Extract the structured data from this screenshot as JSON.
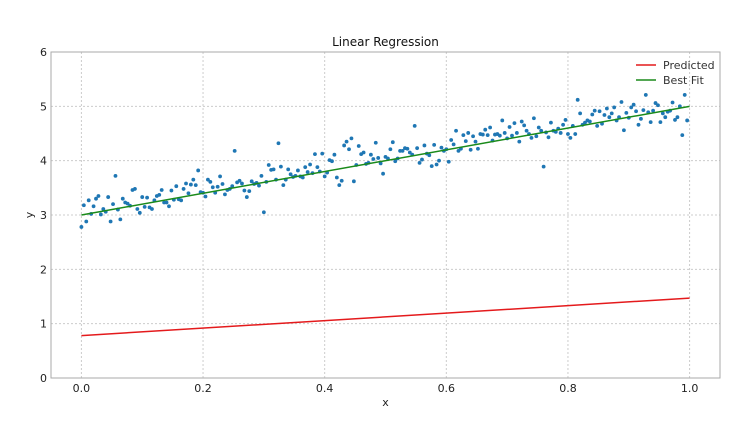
{
  "chart_data": {
    "type": "scatter",
    "title": "Linear Regression",
    "xlabel": "x",
    "ylabel": "y",
    "xlim": [
      -0.05,
      1.05
    ],
    "ylim": [
      0,
      6
    ],
    "x_ticks": [
      "0.0",
      "0.2",
      "0.4",
      "0.6",
      "0.8",
      "1.0"
    ],
    "y_ticks": [
      "0",
      "1",
      "2",
      "3",
      "4",
      "5",
      "6"
    ],
    "grid": true,
    "legend_position": "top-right",
    "scatter": {
      "color": "#1f77b4",
      "points": [
        [
          0.0,
          2.78
        ],
        [
          0.004,
          3.18
        ],
        [
          0.008,
          2.88
        ],
        [
          0.012,
          3.27
        ],
        [
          0.016,
          3.02
        ],
        [
          0.02,
          3.16
        ],
        [
          0.024,
          3.3
        ],
        [
          0.028,
          3.35
        ],
        [
          0.032,
          3.01
        ],
        [
          0.036,
          3.11
        ],
        [
          0.04,
          3.06
        ],
        [
          0.044,
          3.33
        ],
        [
          0.048,
          2.88
        ],
        [
          0.052,
          3.2
        ],
        [
          0.056,
          3.72
        ],
        [
          0.06,
          3.1
        ],
        [
          0.064,
          2.92
        ],
        [
          0.068,
          3.3
        ],
        [
          0.072,
          3.23
        ],
        [
          0.076,
          3.21
        ],
        [
          0.08,
          3.17
        ],
        [
          0.084,
          3.46
        ],
        [
          0.088,
          3.48
        ],
        [
          0.092,
          3.11
        ],
        [
          0.096,
          3.04
        ],
        [
          0.1,
          3.33
        ],
        [
          0.104,
          3.15
        ],
        [
          0.108,
          3.32
        ],
        [
          0.112,
          3.14
        ],
        [
          0.116,
          3.11
        ],
        [
          0.12,
          3.27
        ],
        [
          0.124,
          3.35
        ],
        [
          0.128,
          3.37
        ],
        [
          0.132,
          3.46
        ],
        [
          0.136,
          3.23
        ],
        [
          0.14,
          3.23
        ],
        [
          0.144,
          3.16
        ],
        [
          0.148,
          3.45
        ],
        [
          0.152,
          3.28
        ],
        [
          0.156,
          3.53
        ],
        [
          0.16,
          3.29
        ],
        [
          0.164,
          3.27
        ],
        [
          0.168,
          3.48
        ],
        [
          0.172,
          3.58
        ],
        [
          0.176,
          3.4
        ],
        [
          0.18,
          3.56
        ],
        [
          0.184,
          3.65
        ],
        [
          0.188,
          3.55
        ],
        [
          0.192,
          3.82
        ],
        [
          0.196,
          3.42
        ],
        [
          0.2,
          3.41
        ],
        [
          0.204,
          3.34
        ],
        [
          0.208,
          3.65
        ],
        [
          0.212,
          3.61
        ],
        [
          0.216,
          3.51
        ],
        [
          0.22,
          3.41
        ],
        [
          0.224,
          3.52
        ],
        [
          0.228,
          3.71
        ],
        [
          0.232,
          3.57
        ],
        [
          0.236,
          3.38
        ],
        [
          0.24,
          3.46
        ],
        [
          0.244,
          3.48
        ],
        [
          0.248,
          3.53
        ],
        [
          0.252,
          4.18
        ],
        [
          0.256,
          3.6
        ],
        [
          0.26,
          3.63
        ],
        [
          0.264,
          3.58
        ],
        [
          0.268,
          3.45
        ],
        [
          0.272,
          3.33
        ],
        [
          0.276,
          3.44
        ],
        [
          0.28,
          3.62
        ],
        [
          0.284,
          3.57
        ],
        [
          0.288,
          3.59
        ],
        [
          0.292,
          3.54
        ],
        [
          0.296,
          3.72
        ],
        [
          0.3,
          3.05
        ],
        [
          0.304,
          3.61
        ],
        [
          0.308,
          3.92
        ],
        [
          0.312,
          3.83
        ],
        [
          0.316,
          3.84
        ],
        [
          0.32,
          3.65
        ],
        [
          0.324,
          4.32
        ],
        [
          0.328,
          3.89
        ],
        [
          0.332,
          3.55
        ],
        [
          0.336,
          3.65
        ],
        [
          0.34,
          3.84
        ],
        [
          0.344,
          3.75
        ],
        [
          0.348,
          3.7
        ],
        [
          0.352,
          3.72
        ],
        [
          0.356,
          3.82
        ],
        [
          0.36,
          3.71
        ],
        [
          0.364,
          3.69
        ],
        [
          0.368,
          3.88
        ],
        [
          0.372,
          3.79
        ],
        [
          0.376,
          3.93
        ],
        [
          0.38,
          3.77
        ],
        [
          0.384,
          4.12
        ],
        [
          0.388,
          3.88
        ],
        [
          0.392,
          3.8
        ],
        [
          0.396,
          4.13
        ],
        [
          0.4,
          3.71
        ],
        [
          0.404,
          3.78
        ],
        [
          0.408,
          4.01
        ],
        [
          0.412,
          3.99
        ],
        [
          0.416,
          4.11
        ],
        [
          0.42,
          3.69
        ],
        [
          0.424,
          3.55
        ],
        [
          0.428,
          3.63
        ],
        [
          0.432,
          4.28
        ],
        [
          0.436,
          4.35
        ],
        [
          0.44,
          4.21
        ],
        [
          0.444,
          4.41
        ],
        [
          0.448,
          3.62
        ],
        [
          0.452,
          3.92
        ],
        [
          0.456,
          4.27
        ],
        [
          0.46,
          4.12
        ],
        [
          0.464,
          4.15
        ],
        [
          0.468,
          3.94
        ],
        [
          0.472,
          3.96
        ],
        [
          0.476,
          4.11
        ],
        [
          0.48,
          4.03
        ],
        [
          0.484,
          4.33
        ],
        [
          0.488,
          4.05
        ],
        [
          0.492,
          3.95
        ],
        [
          0.496,
          3.76
        ],
        [
          0.5,
          4.07
        ],
        [
          0.504,
          4.04
        ],
        [
          0.508,
          4.21
        ],
        [
          0.512,
          4.34
        ],
        [
          0.516,
          3.99
        ],
        [
          0.52,
          4.04
        ],
        [
          0.524,
          4.18
        ],
        [
          0.528,
          4.18
        ],
        [
          0.532,
          4.23
        ],
        [
          0.536,
          4.22
        ],
        [
          0.54,
          4.15
        ],
        [
          0.544,
          4.11
        ],
        [
          0.548,
          4.64
        ],
        [
          0.552,
          4.23
        ],
        [
          0.556,
          3.96
        ],
        [
          0.56,
          4.02
        ],
        [
          0.564,
          4.28
        ],
        [
          0.568,
          4.13
        ],
        [
          0.572,
          4.1
        ],
        [
          0.576,
          3.9
        ],
        [
          0.58,
          4.29
        ],
        [
          0.584,
          3.93
        ],
        [
          0.588,
          4.0
        ],
        [
          0.592,
          4.24
        ],
        [
          0.596,
          4.18
        ],
        [
          0.6,
          4.21
        ],
        [
          0.604,
          3.98
        ],
        [
          0.608,
          4.38
        ],
        [
          0.612,
          4.3
        ],
        [
          0.616,
          4.55
        ],
        [
          0.62,
          4.18
        ],
        [
          0.624,
          4.22
        ],
        [
          0.628,
          4.47
        ],
        [
          0.632,
          4.36
        ],
        [
          0.636,
          4.51
        ],
        [
          0.64,
          4.2
        ],
        [
          0.644,
          4.45
        ],
        [
          0.648,
          4.35
        ],
        [
          0.652,
          4.22
        ],
        [
          0.656,
          4.49
        ],
        [
          0.66,
          4.48
        ],
        [
          0.664,
          4.57
        ],
        [
          0.668,
          4.47
        ],
        [
          0.672,
          4.61
        ],
        [
          0.676,
          4.37
        ],
        [
          0.68,
          4.48
        ],
        [
          0.684,
          4.49
        ],
        [
          0.688,
          4.46
        ],
        [
          0.692,
          4.74
        ],
        [
          0.696,
          4.51
        ],
        [
          0.7,
          4.41
        ],
        [
          0.704,
          4.62
        ],
        [
          0.708,
          4.46
        ],
        [
          0.712,
          4.69
        ],
        [
          0.716,
          4.51
        ],
        [
          0.72,
          4.35
        ],
        [
          0.724,
          4.72
        ],
        [
          0.728,
          4.65
        ],
        [
          0.732,
          4.55
        ],
        [
          0.736,
          4.49
        ],
        [
          0.74,
          4.42
        ],
        [
          0.744,
          4.78
        ],
        [
          0.748,
          4.45
        ],
        [
          0.752,
          4.61
        ],
        [
          0.756,
          4.55
        ],
        [
          0.76,
          3.89
        ],
        [
          0.764,
          4.52
        ],
        [
          0.768,
          4.43
        ],
        [
          0.772,
          4.7
        ],
        [
          0.776,
          4.55
        ],
        [
          0.78,
          4.53
        ],
        [
          0.784,
          4.59
        ],
        [
          0.788,
          4.51
        ],
        [
          0.792,
          4.66
        ],
        [
          0.796,
          4.75
        ],
        [
          0.8,
          4.49
        ],
        [
          0.804,
          4.42
        ],
        [
          0.808,
          4.64
        ],
        [
          0.812,
          4.49
        ],
        [
          0.816,
          5.12
        ],
        [
          0.82,
          4.87
        ],
        [
          0.824,
          4.66
        ],
        [
          0.828,
          4.7
        ],
        [
          0.832,
          4.74
        ],
        [
          0.836,
          4.72
        ],
        [
          0.84,
          4.85
        ],
        [
          0.844,
          4.92
        ],
        [
          0.848,
          4.64
        ],
        [
          0.852,
          4.91
        ],
        [
          0.856,
          4.68
        ],
        [
          0.86,
          4.84
        ],
        [
          0.864,
          4.96
        ],
        [
          0.868,
          4.8
        ],
        [
          0.872,
          4.87
        ],
        [
          0.876,
          4.98
        ],
        [
          0.88,
          4.74
        ],
        [
          0.884,
          4.8
        ],
        [
          0.888,
          5.08
        ],
        [
          0.892,
          4.56
        ],
        [
          0.896,
          4.88
        ],
        [
          0.9,
          4.79
        ],
        [
          0.904,
          4.98
        ],
        [
          0.908,
          5.03
        ],
        [
          0.912,
          4.91
        ],
        [
          0.916,
          4.66
        ],
        [
          0.92,
          4.77
        ],
        [
          0.924,
          4.93
        ],
        [
          0.928,
          5.21
        ],
        [
          0.932,
          4.89
        ],
        [
          0.936,
          4.71
        ],
        [
          0.94,
          4.92
        ],
        [
          0.944,
          5.06
        ],
        [
          0.948,
          5.02
        ],
        [
          0.952,
          4.71
        ],
        [
          0.956,
          4.87
        ],
        [
          0.96,
          4.8
        ],
        [
          0.964,
          4.9
        ],
        [
          0.968,
          4.92
        ],
        [
          0.972,
          5.07
        ],
        [
          0.976,
          4.75
        ],
        [
          0.98,
          4.8
        ],
        [
          0.984,
          5.0
        ],
        [
          0.988,
          4.47
        ],
        [
          0.992,
          5.21
        ],
        [
          0.996,
          4.74
        ]
      ]
    },
    "lines": [
      {
        "name": "Predicted",
        "color": "#e41a1c",
        "x": [
          0,
          1
        ],
        "y": [
          0.78,
          1.47
        ]
      },
      {
        "name": "Best Fit",
        "color": "#1a8a1a",
        "x": [
          0,
          1
        ],
        "y": [
          3.0,
          5.0
        ]
      }
    ]
  }
}
